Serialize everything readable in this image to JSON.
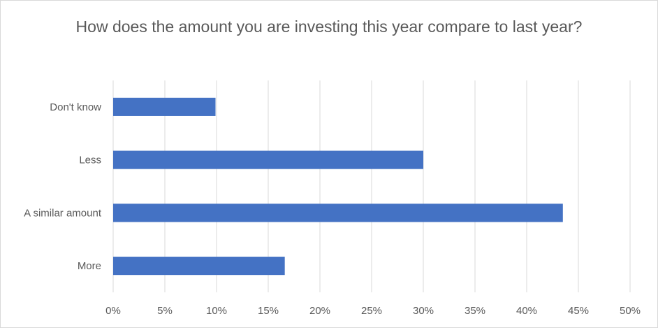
{
  "chart_data": {
    "type": "bar",
    "orientation": "horizontal",
    "title": "How does the amount you are investing this year compare to last year?",
    "categories": [
      "Don't know",
      "Less",
      "A similar amount",
      "More"
    ],
    "values": [
      0.099,
      0.3,
      0.435,
      0.166
    ],
    "xlim": [
      0,
      0.5
    ],
    "x_ticks": [
      "0%",
      "5%",
      "10%",
      "15%",
      "20%",
      "25%",
      "30%",
      "35%",
      "40%",
      "45%",
      "50%"
    ],
    "grid": "vertical",
    "legend": "none",
    "bar_color": "#4472C4"
  }
}
